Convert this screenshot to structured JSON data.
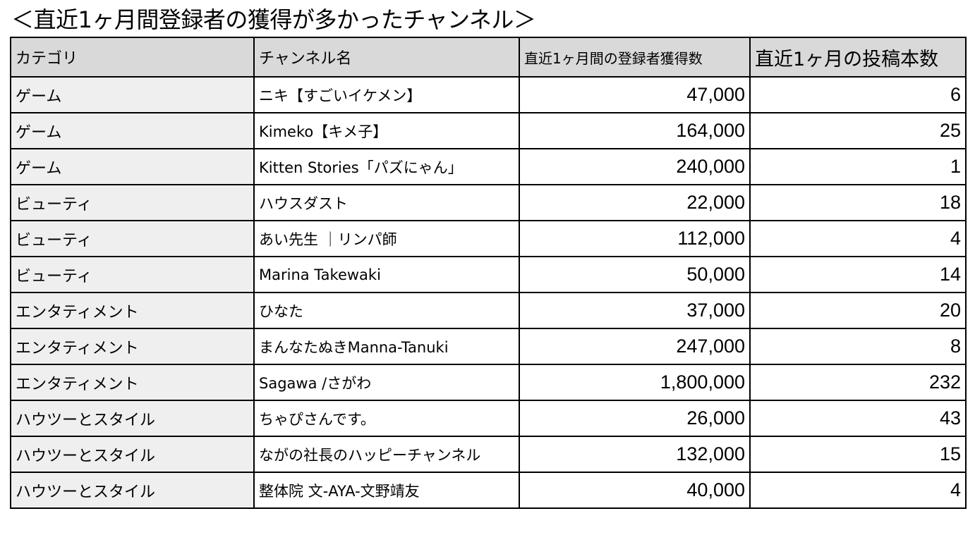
{
  "title": "＜直近1ヶ月間登録者の獲得が多かったチャンネル＞",
  "table": {
    "headers": {
      "category": "カテゴリ",
      "channel": "チャンネル名",
      "subscribers": "直近1ヶ月間の登録者獲得数",
      "posts": "直近1ヶ月の投稿本数"
    },
    "rows": [
      {
        "category": "ゲーム",
        "channel": "ニキ【すごいイケメン】",
        "subscribers": "47,000",
        "posts": "6"
      },
      {
        "category": "ゲーム",
        "channel": "Kimeko【キメ子】",
        "subscribers": "164,000",
        "posts": "25"
      },
      {
        "category": "ゲーム",
        "channel": "Kitten Stories「パズにゃん」",
        "subscribers": "240,000",
        "posts": "1"
      },
      {
        "category": "ビューティ",
        "channel": "ハウスダスト",
        "subscribers": "22,000",
        "posts": "18"
      },
      {
        "category": "ビューティ",
        "channel": "あい先生 ｜リンパ師",
        "subscribers": "112,000",
        "posts": "4"
      },
      {
        "category": "ビューティ",
        "channel": "Marina Takewaki",
        "subscribers": "50,000",
        "posts": "14"
      },
      {
        "category": "エンタティメント",
        "channel": "ひなた",
        "subscribers": "37,000",
        "posts": "20"
      },
      {
        "category": "エンタティメント",
        "channel": "まんなたぬきManna-Tanuki",
        "subscribers": "247,000",
        "posts": "8"
      },
      {
        "category": "エンタティメント",
        "channel": "Sagawa /さがわ",
        "subscribers": "1,800,000",
        "posts": "232"
      },
      {
        "category": "ハウツーとスタイル",
        "channel": "ちゃぴさんです。",
        "subscribers": "26,000",
        "posts": "43"
      },
      {
        "category": "ハウツーとスタイル",
        "channel": "ながの社長のハッピーチャンネル",
        "subscribers": "132,000",
        "posts": "15"
      },
      {
        "category": "ハウツーとスタイル",
        "channel": "整体院 文-AYA-文野靖友",
        "subscribers": "40,000",
        "posts": "4"
      }
    ]
  }
}
